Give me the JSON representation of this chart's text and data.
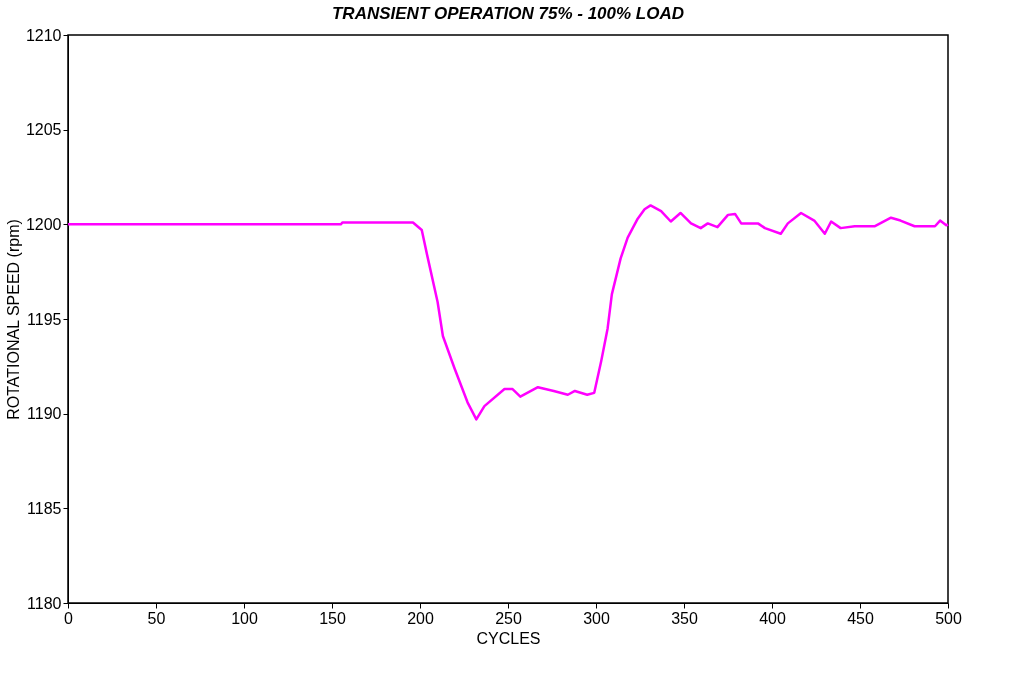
{
  "chart_data": {
    "type": "line",
    "title": "TRANSIENT OPERATION 75% - 100% LOAD",
    "xlabel": "CYCLES",
    "ylabel": "ROTATIONAL SPEED (rpm)",
    "xlim": [
      0,
      500
    ],
    "xticks": [
      0,
      50,
      100,
      150,
      200,
      250,
      300,
      350,
      400,
      450,
      500
    ],
    "ylim": [
      1180,
      1210
    ],
    "yticks": [
      1180,
      1185,
      1190,
      1195,
      1200,
      1205,
      1210
    ],
    "grid": false,
    "legend": false,
    "marker": "none",
    "line_style": "solid",
    "series": [
      {
        "color": "#ff00ff",
        "x": [
          0,
          155,
          156,
          196,
          201,
          204,
          210,
          213,
          219.6,
          227,
          232,
          236.6,
          248,
          252.6,
          257,
          267,
          276,
          284,
          288,
          295,
          299,
          303,
          306.6,
          309,
          314,
          318,
          323.7,
          327.6,
          331,
          337,
          342.5,
          348,
          354,
          359.5,
          363.5,
          369,
          375,
          379,
          382.5,
          392,
          396,
          405,
          409,
          416.5,
          424,
          430,
          433.6,
          439,
          447,
          458.5,
          467.6,
          473,
          481,
          492.6,
          495.5,
          499,
          500
        ],
        "values": [
          1200.0,
          1200.0,
          1200.1,
          1200.1,
          1199.7,
          1198.4,
          1195.9,
          1194.1,
          1192.4,
          1190.6,
          1189.7,
          1190.4,
          1191.3,
          1191.3,
          1190.9,
          1191.4,
          1191.2,
          1191.0,
          1191.2,
          1191.0,
          1191.1,
          1192.8,
          1194.5,
          1196.3,
          1198.2,
          1199.3,
          1200.3,
          1200.8,
          1201.0,
          1200.7,
          1200.15,
          1200.6,
          1200.05,
          1199.8,
          1200.05,
          1199.85,
          1200.5,
          1200.55,
          1200.05,
          1200.05,
          1199.8,
          1199.5,
          1200.05,
          1200.6,
          1200.2,
          1199.5,
          1200.15,
          1199.8,
          1199.9,
          1199.9,
          1200.35,
          1200.2,
          1199.9,
          1199.9,
          1200.2,
          1199.95,
          1200.0
        ]
      }
    ]
  }
}
